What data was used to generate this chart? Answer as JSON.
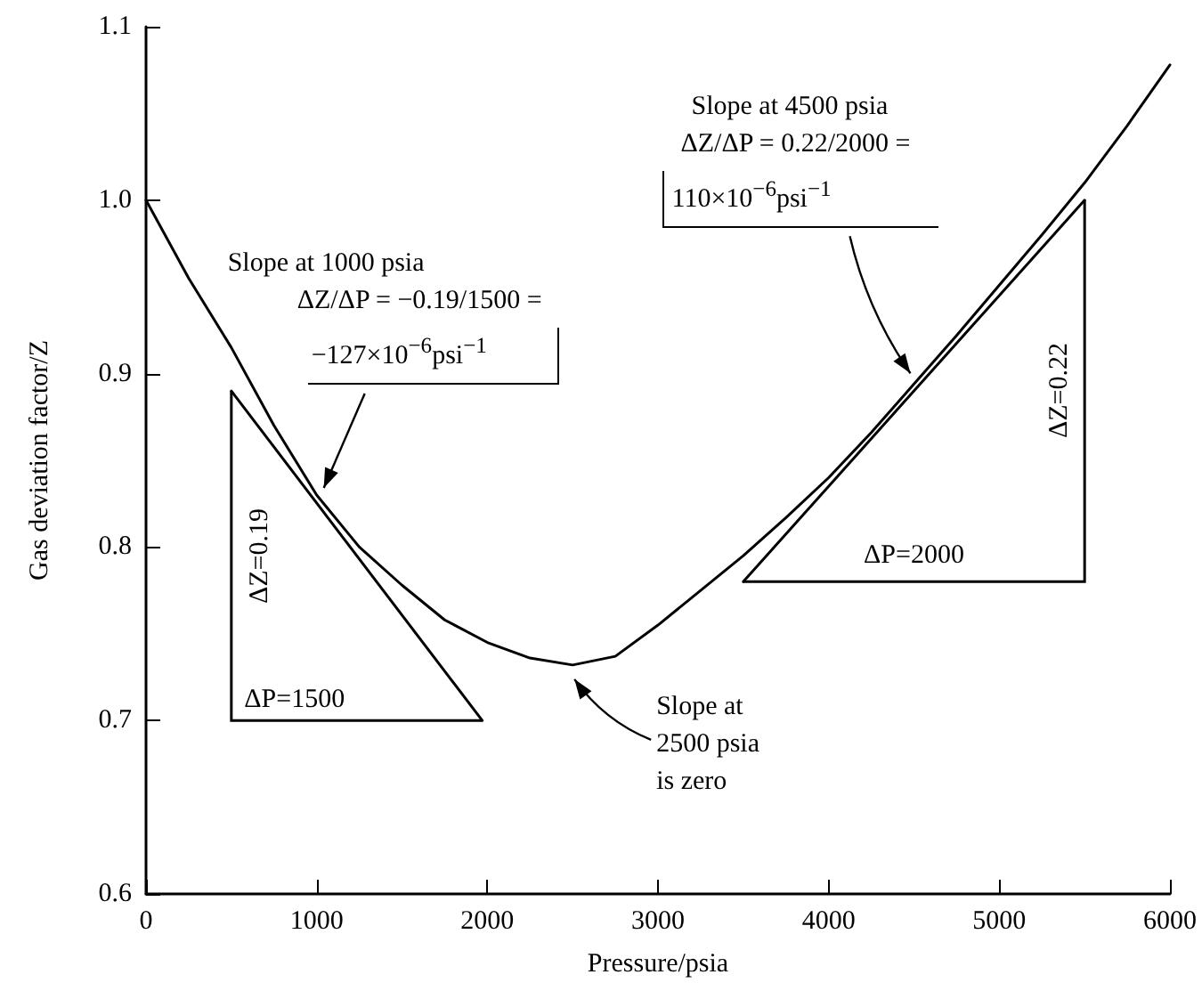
{
  "chart_data": {
    "type": "line",
    "xlabel": "Pressure/psia",
    "ylabel": "Gas deviation factor/Z",
    "xlim": [
      0,
      6000
    ],
    "xticks": [
      0,
      1000,
      2000,
      3000,
      4000,
      5000,
      6000
    ],
    "ylim": [
      0.6,
      1.1
    ],
    "yticks": [
      {
        "value": 0.6,
        "label": "0.6"
      },
      {
        "value": 0.7,
        "label": "0.7"
      },
      {
        "value": 0.8,
        "label": "0.8"
      },
      {
        "value": 0.9,
        "label": "0.9"
      },
      {
        "value": 1.0,
        "label": "1.0"
      },
      {
        "value": 1.1,
        "label": "1.1"
      }
    ],
    "grid": false,
    "marker": "none",
    "line_style": "solid",
    "series": [
      {
        "color": "#000000",
        "x": [
          0,
          250,
          500,
          750,
          1000,
          1250,
          1500,
          1750,
          2000,
          2250,
          2500,
          2750,
          3000,
          3250,
          3500,
          3750,
          4000,
          4250,
          4500,
          4750,
          5000,
          5250,
          5500,
          5750,
          6000
        ],
        "values": [
          1.0,
          0.955,
          0.915,
          0.87,
          0.83,
          0.8,
          0.778,
          0.758,
          0.745,
          0.736,
          0.732,
          0.737,
          0.755,
          0.775,
          0.795,
          0.817,
          0.84,
          0.866,
          0.894,
          0.922,
          0.951,
          0.98,
          1.01,
          1.043,
          1.078
        ]
      },
      {
        "color": "#000000",
        "x": [
          500,
          1970
        ],
        "values": [
          0.89,
          0.7
        ]
      },
      {
        "color": "#000000",
        "x": [
          3500,
          5500
        ],
        "values": [
          0.78,
          1.0
        ]
      }
    ],
    "annotations": [
      {
        "text": "Slope at 1000 psia\nΔZ/ΔP = −0.19/1500 =\n−127×10$^{−6}$psi$^{−1}$",
        "x": 1000,
        "y": 0.83
      },
      {
        "text": "Slope at 4500 psia\nΔZ/ΔP = 0.22/2000 =\n110×10$^{−6}$psi$^{−1}$",
        "x": 4500,
        "y": 0.894
      },
      {
        "text": "Slope at\n2500 psia\nis zero",
        "x": 2500,
        "y": 0.732
      },
      "ΔZ=0.19",
      "ΔP=1500",
      "ΔZ=0.22",
      "ΔP=2000"
    ]
  }
}
